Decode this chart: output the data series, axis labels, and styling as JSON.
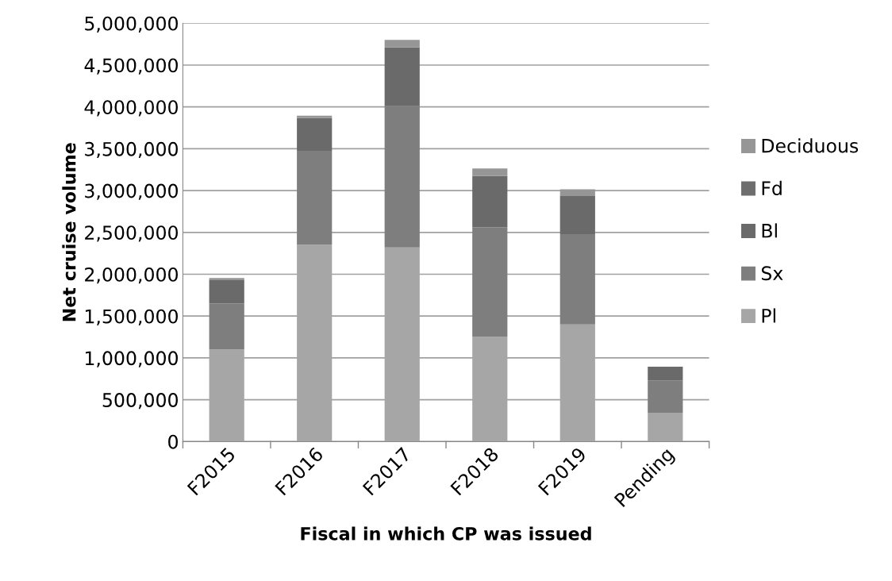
{
  "chart_data": {
    "type": "bar",
    "stacked": true,
    "xlabel": "Fiscal in which CP was issued",
    "ylabel": "Net cruise volume",
    "categories": [
      "F2015",
      "F2016",
      "F2017",
      "F2018",
      "F2019",
      "Pending"
    ],
    "series": [
      {
        "name": "Pl",
        "color": "#a6a6a6",
        "values": [
          1100000,
          2350000,
          2320000,
          1250000,
          1400000,
          345000
        ]
      },
      {
        "name": "Sx",
        "color": "#7e7e7e",
        "values": [
          550000,
          1125000,
          1690000,
          1310000,
          1080000,
          385000
        ]
      },
      {
        "name": "Bl",
        "color": "#6a6a6a",
        "values": [
          280000,
          395000,
          700000,
          615000,
          455000,
          165000
        ]
      },
      {
        "name": "Fd",
        "color": "#6e6e6e",
        "values": [
          0,
          0,
          0,
          0,
          0,
          0
        ]
      },
      {
        "name": "Deciduous",
        "color": "#969696",
        "values": [
          25000,
          25000,
          90000,
          90000,
          80000,
          0
        ]
      }
    ],
    "ylim": [
      0,
      5000000
    ],
    "yticks": [
      {
        "value": 0,
        "label": "0"
      },
      {
        "value": 500000,
        "label": "500,000"
      },
      {
        "value": 1000000,
        "label": "1,000,000"
      },
      {
        "value": 1500000,
        "label": "1,500,000"
      },
      {
        "value": 2000000,
        "label": "2,000,000"
      },
      {
        "value": 2500000,
        "label": "2,500,000"
      },
      {
        "value": 3000000,
        "label": "3,000,000"
      },
      {
        "value": 3500000,
        "label": "3,500,000"
      },
      {
        "value": 4000000,
        "label": "4,000,000"
      },
      {
        "value": 4500000,
        "label": "4,500,000"
      },
      {
        "value": 5000000,
        "label": "5,000,000"
      }
    ],
    "grid": "y",
    "legend": "right"
  }
}
